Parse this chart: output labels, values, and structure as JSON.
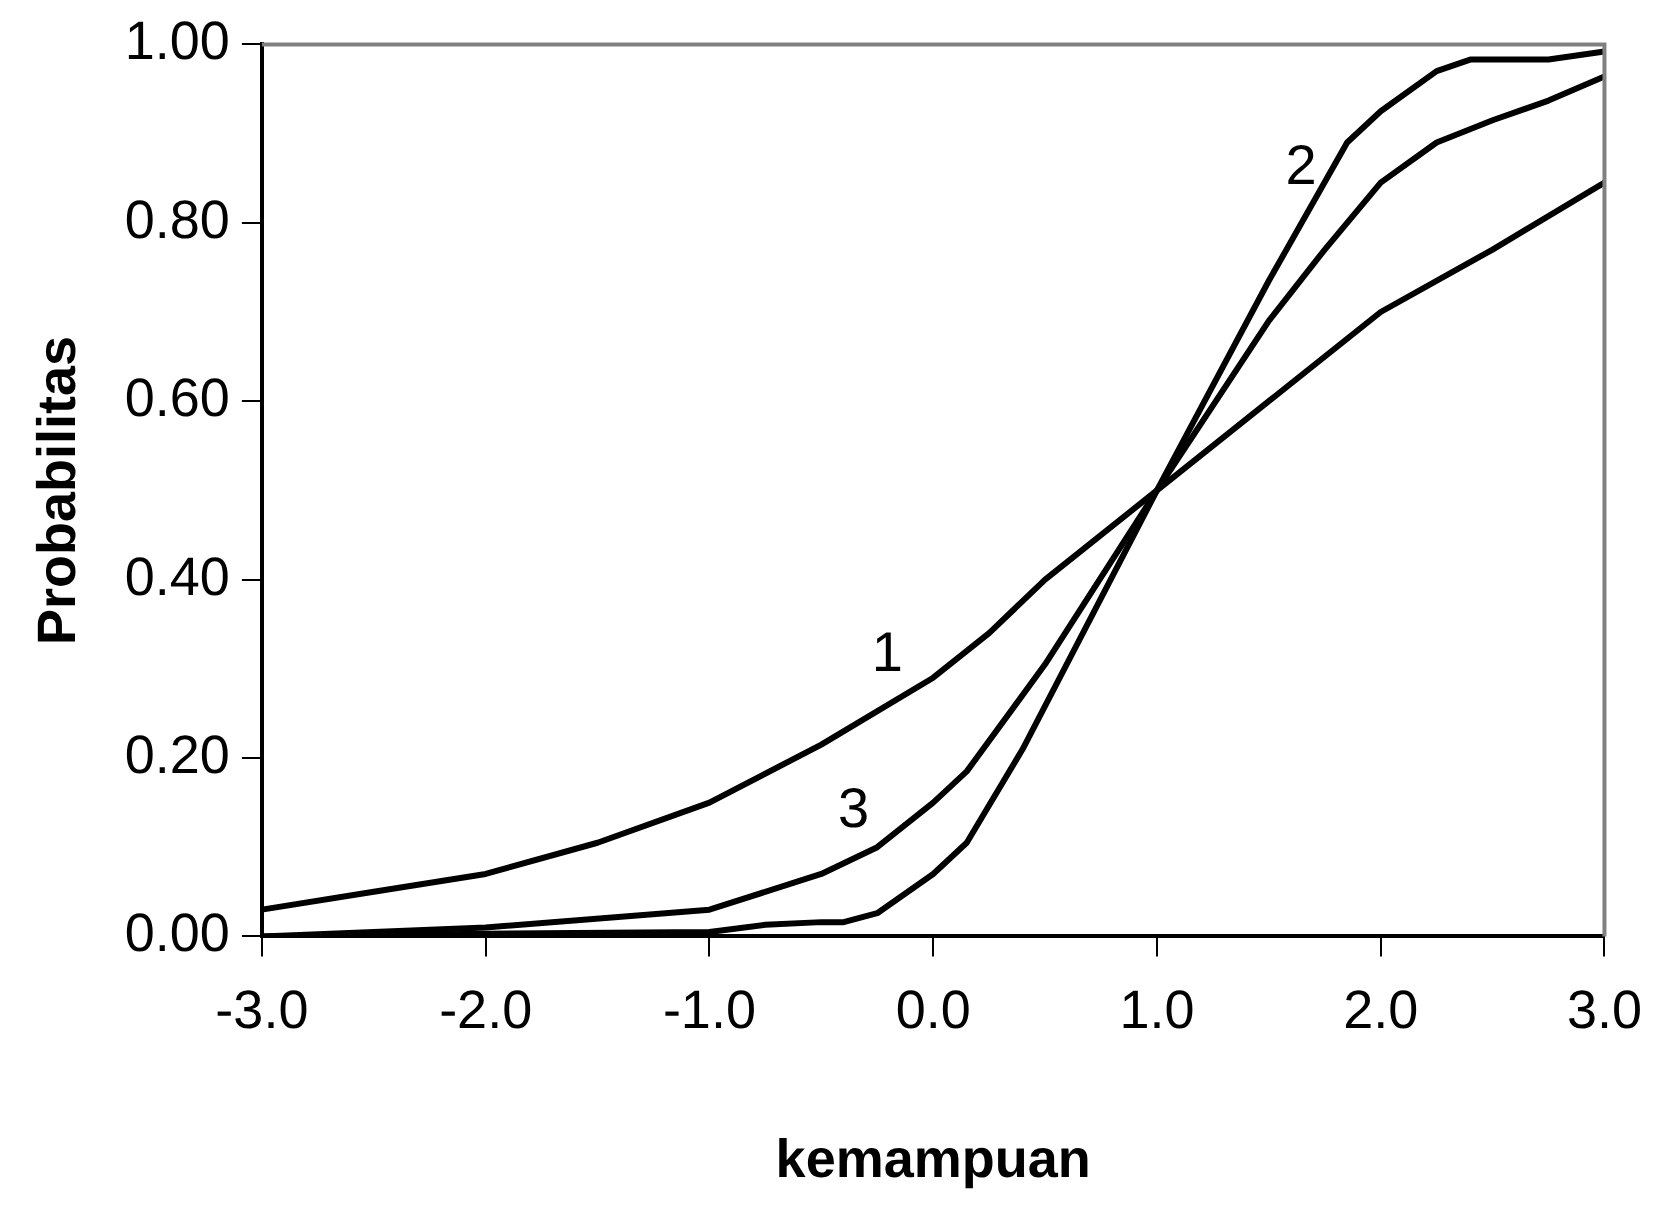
{
  "chart_data": {
    "type": "line",
    "xlabel": "kemampuan",
    "ylabel": "Probabilitas",
    "xlim": [
      -3,
      3
    ],
    "xticks": [
      {
        "value": -3,
        "label": "-3.0"
      },
      {
        "value": -2,
        "label": "-2.0"
      },
      {
        "value": -1,
        "label": "-1.0"
      },
      {
        "value": 0,
        "label": "0.0"
      },
      {
        "value": 1,
        "label": "1.0"
      },
      {
        "value": 2,
        "label": "2.0"
      },
      {
        "value": 3,
        "label": "3.0"
      }
    ],
    "ylim": [
      0,
      1
    ],
    "yticks": [
      {
        "value": 0,
        "label": "0.00"
      },
      {
        "value": 0.2,
        "label": "0.20"
      },
      {
        "value": 0.4,
        "label": "0.40"
      },
      {
        "value": 0.6,
        "label": "0.60"
      },
      {
        "value": 0.8,
        "label": "0.80"
      },
      {
        "value": 1,
        "label": "1.00"
      }
    ],
    "grid": false,
    "legend": false,
    "marker": "none",
    "line_style": "solid",
    "series": [
      {
        "color": "#000000",
        "x": [
          -3,
          -2.5,
          -2,
          -1.5,
          -1,
          -0.5,
          0,
          0.25,
          0.5,
          1,
          1.5,
          2,
          2.5,
          3
        ],
        "values": [
          0.03,
          0.05,
          0.07,
          0.105,
          0.15,
          0.215,
          0.29,
          0.34,
          0.4,
          0.5,
          0.6,
          0.7,
          0.77,
          0.845
        ]
      },
      {
        "color": "#000000",
        "x": [
          -3,
          -2,
          -1,
          -0.75,
          -0.5,
          -0.4,
          -0.25,
          0,
          0.15,
          0.4,
          1,
          1.5,
          1.85,
          2,
          2.25,
          2.4,
          2.75,
          3
        ],
        "values": [
          0,
          0.003,
          0.005,
          0.013,
          0.016,
          0.016,
          0.026,
          0.07,
          0.105,
          0.21,
          0.5,
          0.735,
          0.89,
          0.925,
          0.97,
          0.983,
          0.983,
          0.992
        ]
      },
      {
        "color": "#000000",
        "x": [
          -3,
          -2,
          -1,
          -0.5,
          -0.25,
          0,
          0.15,
          0.5,
          1,
          1.5,
          1.75,
          2,
          2.25,
          2.5,
          2.75,
          3
        ],
        "values": [
          0,
          0.01,
          0.03,
          0.07,
          0.1,
          0.15,
          0.185,
          0.305,
          0.5,
          0.69,
          0.77,
          0.845,
          0.89,
          0.915,
          0.937,
          0.964
        ]
      }
    ],
    "annotations": [
      {
        "text": "1",
        "x": -0.1,
        "y": 0.275
      },
      {
        "text": "2",
        "x": 1.75,
        "y": 0.82
      },
      {
        "text": "3",
        "x": -0.25,
        "y": 0.1
      }
    ]
  }
}
